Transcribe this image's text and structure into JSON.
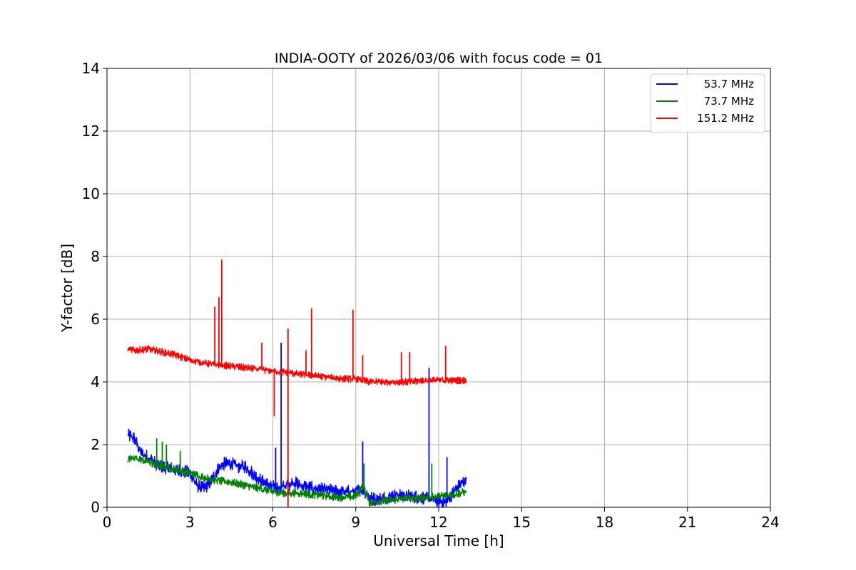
{
  "chart_data": {
    "type": "line",
    "title": "INDIA-OOTY of 2026/03/06 with focus code = 01",
    "xlabel": "Universal Time [h]",
    "ylabel": "Y-factor [dB]",
    "xlim": [
      0,
      24
    ],
    "ylim": [
      0,
      14
    ],
    "xticks": [
      0,
      3,
      6,
      9,
      12,
      15,
      18,
      21,
      24
    ],
    "yticks": [
      0,
      2,
      4,
      6,
      8,
      10,
      12,
      14
    ],
    "grid": true,
    "legend_position": "top-right",
    "series": [
      {
        "name": "53.7 MHz",
        "color": "#0000ff",
        "x": [
          0.75,
          1.0,
          1.25,
          1.5,
          1.75,
          2.0,
          2.5,
          3.0,
          3.25,
          3.5,
          3.75,
          4.0,
          4.25,
          4.5,
          4.75,
          5.0,
          5.25,
          5.5,
          5.75,
          6.0,
          6.25,
          6.5,
          6.75,
          7.0,
          7.5,
          8.0,
          8.5,
          9.0,
          9.25,
          9.5,
          9.75,
          10.0,
          10.5,
          11.0,
          11.5,
          12.0,
          12.25,
          12.5,
          12.75,
          13.0
        ],
        "y": [
          2.3,
          2.2,
          1.7,
          1.6,
          1.4,
          1.3,
          1.2,
          1.1,
          0.7,
          0.6,
          0.8,
          1.2,
          1.4,
          1.4,
          1.3,
          1.3,
          1.1,
          0.9,
          0.75,
          0.65,
          0.6,
          0.7,
          0.8,
          0.7,
          0.6,
          0.55,
          0.5,
          0.5,
          0.6,
          0.3,
          0.25,
          0.3,
          0.4,
          0.35,
          0.3,
          0.2,
          0.15,
          0.45,
          0.7,
          0.9
        ],
        "spikes": [
          {
            "x": 6.3,
            "y": 5.25
          },
          {
            "x": 11.65,
            "y": 4.45
          },
          {
            "x": 9.25,
            "y": 2.1
          },
          {
            "x": 12.3,
            "y": 1.6
          },
          {
            "x": 6.1,
            "y": 1.9
          }
        ]
      },
      {
        "name": "73.7 MHz",
        "color": "#008000",
        "x": [
          0.75,
          1.0,
          1.5,
          2.0,
          2.5,
          3.0,
          3.5,
          4.0,
          4.5,
          5.0,
          5.5,
          6.0,
          6.5,
          7.0,
          7.5,
          8.0,
          8.5,
          9.0,
          9.25,
          9.5,
          10.0,
          10.5,
          11.0,
          11.5,
          12.0,
          12.5,
          13.0
        ],
        "y": [
          1.5,
          1.6,
          1.45,
          1.3,
          1.2,
          1.1,
          0.95,
          0.85,
          0.8,
          0.7,
          0.6,
          0.5,
          0.45,
          0.45,
          0.4,
          0.35,
          0.32,
          0.35,
          0.7,
          0.15,
          0.2,
          0.25,
          0.3,
          0.3,
          0.35,
          0.4,
          0.5
        ],
        "spikes": [
          {
            "x": 1.8,
            "y": 2.2
          },
          {
            "x": 2.0,
            "y": 2.1
          },
          {
            "x": 2.15,
            "y": 2.0
          },
          {
            "x": 2.65,
            "y": 1.8
          },
          {
            "x": 9.3,
            "y": 1.4
          },
          {
            "x": 11.75,
            "y": 1.4
          }
        ]
      },
      {
        "name": "151.2 MHz",
        "color": "#ff0000",
        "x": [
          0.75,
          1.0,
          1.5,
          2.0,
          2.5,
          3.0,
          3.5,
          4.0,
          4.5,
          5.0,
          5.5,
          6.0,
          6.5,
          7.0,
          7.5,
          8.0,
          8.5,
          9.0,
          9.5,
          10.0,
          10.5,
          11.0,
          11.5,
          12.0,
          12.5,
          13.0
        ],
        "y": [
          5.05,
          5.0,
          5.05,
          4.95,
          4.85,
          4.7,
          4.6,
          4.55,
          4.5,
          4.45,
          4.4,
          4.35,
          4.3,
          4.25,
          4.2,
          4.15,
          4.1,
          4.1,
          4.0,
          4.0,
          4.0,
          4.0,
          4.05,
          4.05,
          4.05,
          4.05
        ],
        "spikes": [
          {
            "x": 3.9,
            "y": 6.4
          },
          {
            "x": 4.05,
            "y": 6.7
          },
          {
            "x": 4.15,
            "y": 7.9
          },
          {
            "x": 5.6,
            "y": 5.25
          },
          {
            "x": 6.05,
            "y": 2.9
          },
          {
            "x": 6.55,
            "y": 5.7
          },
          {
            "x": 6.55,
            "y": 0.0
          },
          {
            "x": 7.2,
            "y": 5.0
          },
          {
            "x": 7.4,
            "y": 6.35
          },
          {
            "x": 8.9,
            "y": 6.3
          },
          {
            "x": 9.25,
            "y": 4.85
          },
          {
            "x": 10.65,
            "y": 4.95
          },
          {
            "x": 10.95,
            "y": 4.95
          },
          {
            "x": 12.25,
            "y": 5.15
          }
        ]
      }
    ]
  }
}
